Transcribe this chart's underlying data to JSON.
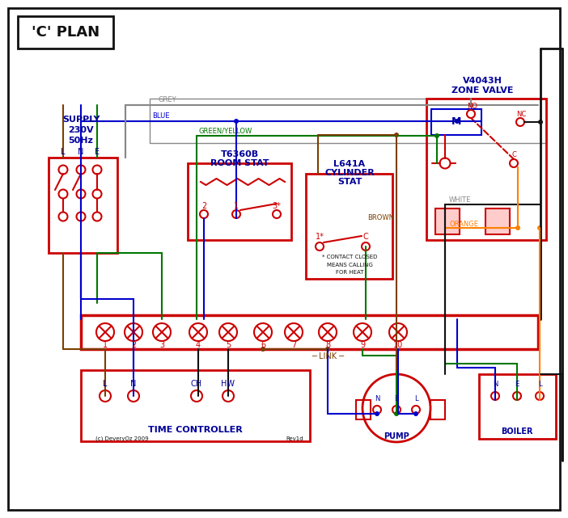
{
  "bg": "#ffffff",
  "RED": "#cc0000",
  "BLUE": "#0000cc",
  "GREEN": "#007700",
  "GREY": "#888888",
  "BROWN": "#7B3F00",
  "ORANGE": "#FF8000",
  "BLACK": "#111111",
  "DB": "#000099",
  "title": "'C' PLAN",
  "supply_label": "SUPPLY\n230V\n50Hz",
  "room_stat_model": "T6360B",
  "room_stat_label": "ROOM STAT",
  "cyl_stat_model": "L641A",
  "cyl_stat_label": "CYLINDER\nSTAT",
  "zone_valve_model": "V4043H",
  "zone_valve_label": "ZONE VALVE",
  "tc_label": "TIME CONTROLLER",
  "pump_label": "PUMP",
  "boiler_label": "BOILER",
  "link_label": "LINK",
  "copyright": "(c) DeveryOz 2009",
  "revision": "Rev1d",
  "terminals": [
    "1",
    "2",
    "3",
    "4",
    "5",
    "6",
    "7",
    "8",
    "9",
    "10"
  ],
  "grey_lbl": "GREY",
  "blue_lbl": "BLUE",
  "gy_lbl": "GREEN/YELLOW",
  "brown_lbl": "BROWN",
  "white_lbl": "WHITE",
  "orange_lbl": "ORANGE"
}
